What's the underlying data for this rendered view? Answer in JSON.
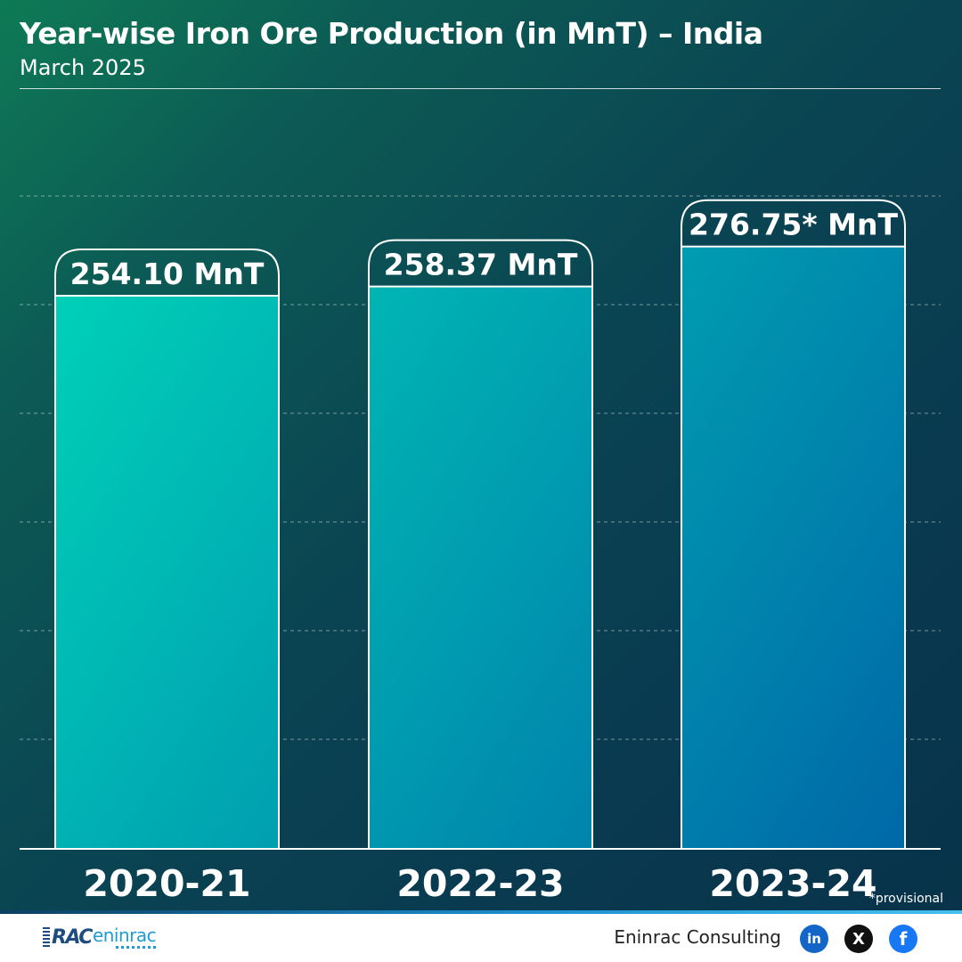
{
  "header": {
    "title": "Year-wise Iron Ore Production (in MnT) – India",
    "subtitle": "March 2025"
  },
  "chart_data": {
    "type": "bar",
    "title": "Year-wise Iron Ore Production (in MnT) – India",
    "subtitle": "March 2025",
    "categories": [
      "2020-21",
      "2022-23",
      "2023-24"
    ],
    "values": [
      254.1,
      258.37,
      276.75
    ],
    "data_labels": [
      "254.10 MnT",
      "258.37 MnT",
      "276.75* MnT"
    ],
    "unit": "MnT",
    "xlabel": "",
    "ylabel": "",
    "ylim": [
      0,
      300
    ],
    "grid": true,
    "legend": "none",
    "colors": {
      "bar_top_left": "#00d0b8",
      "bar_bottom_right": "#0068a8",
      "outline": "#ffffff",
      "background_start": "#0e7a55",
      "background_end": "#08334a"
    }
  },
  "footnote": "*provisional",
  "footer": {
    "brand_mark": "RAC",
    "brand_name": "eninrac",
    "company": "Eninrac Consulting",
    "social": [
      {
        "icon": "linkedin-icon",
        "glyph": "in"
      },
      {
        "icon": "x-icon",
        "glyph": "X"
      },
      {
        "icon": "facebook-icon",
        "glyph": "f"
      }
    ]
  }
}
